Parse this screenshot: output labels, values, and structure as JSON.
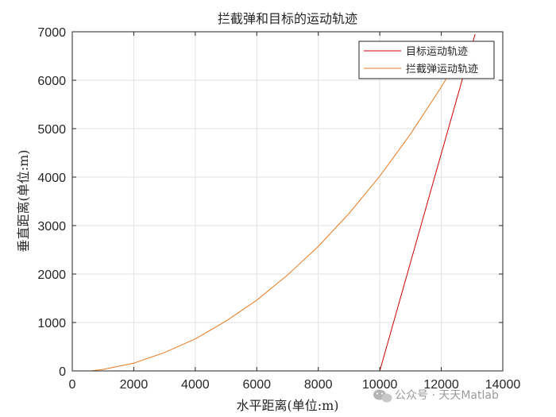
{
  "chart_data": {
    "type": "line",
    "title": "拦截弹和目标的运动轨迹",
    "xlabel": "水平距离(单位:m)",
    "ylabel": "垂直距离(单位:m)",
    "xlim": [
      0,
      14000
    ],
    "ylim": [
      0,
      7000
    ],
    "xticks": [
      0,
      2000,
      4000,
      6000,
      8000,
      10000,
      12000,
      14000
    ],
    "yticks": [
      0,
      1000,
      2000,
      3000,
      4000,
      5000,
      6000,
      7000
    ],
    "grid": true,
    "legend_position": "top-right",
    "series": [
      {
        "name": "目标运动轨迹",
        "color": "#cc0000",
        "x": [
          10000,
          13100
        ],
        "y": [
          0,
          6950
        ]
      },
      {
        "name": "拦截弹运动轨迹",
        "color": "#e87a1e",
        "x": [
          600,
          1000,
          2000,
          3000,
          4000,
          5000,
          6000,
          7000,
          8000,
          9000,
          10000,
          11000,
          12000,
          12800
        ],
        "y": [
          0,
          30,
          160,
          380,
          660,
          1030,
          1460,
          1980,
          2570,
          3250,
          4020,
          4890,
          5860,
          6700
        ]
      }
    ]
  },
  "watermark": "公众号 · 天天Matlab"
}
